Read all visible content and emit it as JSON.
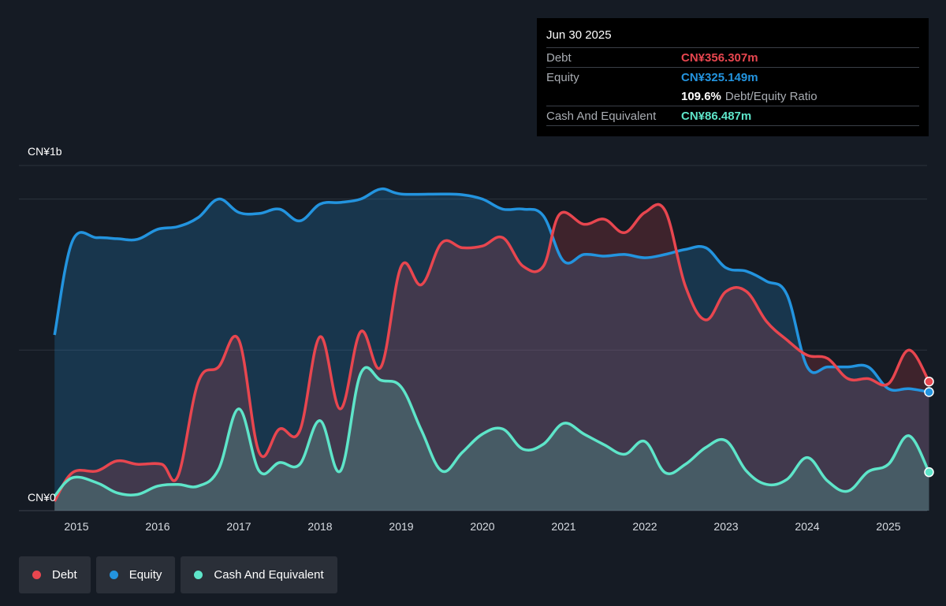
{
  "tooltip": {
    "date": "Jun 30 2025",
    "debt_label": "Debt",
    "debt_value": "CN¥356.307m",
    "equity_label": "Equity",
    "equity_value": "CN¥325.149m",
    "ratio_value": "109.6%",
    "ratio_label": "Debt/Equity Ratio",
    "cash_label": "Cash And Equivalent",
    "cash_value": "CN¥86.487m"
  },
  "legend": {
    "debt": "Debt",
    "equity": "Equity",
    "cash": "Cash And Equivalent"
  },
  "colors": {
    "debt": "#e8464f",
    "equity": "#2394df",
    "cash": "#5ee5c9",
    "background": "#151b24"
  },
  "chart_data": {
    "type": "area",
    "unit": "CN¥m",
    "y_top_label": "CN¥1b",
    "y_zero_label": "CN¥0",
    "ylim": [
      -30,
      1000
    ],
    "xlim": [
      2014.73,
      2025.5
    ],
    "x_ticks": [
      2015,
      2016,
      2017,
      2018,
      2019,
      2020,
      2021,
      2022,
      2023,
      2024,
      2025
    ],
    "grid": true,
    "legend_position": "bottom-left",
    "series": [
      {
        "name": "Debt",
        "key": "debt",
        "points": [
          [
            2014.73,
            0
          ],
          [
            2014.95,
            85
          ],
          [
            2015.25,
            90
          ],
          [
            2015.5,
            120
          ],
          [
            2015.75,
            110
          ],
          [
            2016.05,
            110
          ],
          [
            2016.25,
            75
          ],
          [
            2016.5,
            355
          ],
          [
            2016.75,
            400
          ],
          [
            2017.0,
            480
          ],
          [
            2017.25,
            145
          ],
          [
            2017.5,
            215
          ],
          [
            2017.75,
            210
          ],
          [
            2018.0,
            490
          ],
          [
            2018.25,
            275
          ],
          [
            2018.5,
            505
          ],
          [
            2018.75,
            400
          ],
          [
            2019.0,
            700
          ],
          [
            2019.25,
            645
          ],
          [
            2019.5,
            770
          ],
          [
            2019.75,
            755
          ],
          [
            2020.0,
            760
          ],
          [
            2020.25,
            785
          ],
          [
            2020.5,
            700
          ],
          [
            2020.75,
            700
          ],
          [
            2020.95,
            855
          ],
          [
            2021.25,
            825
          ],
          [
            2021.5,
            840
          ],
          [
            2021.75,
            800
          ],
          [
            2022.0,
            860
          ],
          [
            2022.25,
            865
          ],
          [
            2022.5,
            640
          ],
          [
            2022.75,
            540
          ],
          [
            2023.0,
            625
          ],
          [
            2023.25,
            625
          ],
          [
            2023.5,
            535
          ],
          [
            2023.75,
            480
          ],
          [
            2024.0,
            435
          ],
          [
            2024.25,
            425
          ],
          [
            2024.5,
            365
          ],
          [
            2024.75,
            365
          ],
          [
            2025.0,
            350
          ],
          [
            2025.25,
            450
          ],
          [
            2025.5,
            356.307
          ]
        ]
      },
      {
        "name": "Equity",
        "key": "equity",
        "points": [
          [
            2014.73,
            495
          ],
          [
            2014.95,
            775
          ],
          [
            2015.25,
            785
          ],
          [
            2015.5,
            782
          ],
          [
            2015.75,
            780
          ],
          [
            2016.0,
            810
          ],
          [
            2016.25,
            818
          ],
          [
            2016.5,
            845
          ],
          [
            2016.75,
            900
          ],
          [
            2017.0,
            860
          ],
          [
            2017.25,
            857
          ],
          [
            2017.5,
            870
          ],
          [
            2017.75,
            835
          ],
          [
            2018.0,
            885
          ],
          [
            2018.25,
            890
          ],
          [
            2018.5,
            900
          ],
          [
            2018.75,
            930
          ],
          [
            2019.0,
            915
          ],
          [
            2019.5,
            915
          ],
          [
            2019.75,
            913
          ],
          [
            2020.0,
            900
          ],
          [
            2020.25,
            870
          ],
          [
            2020.5,
            870
          ],
          [
            2020.75,
            850
          ],
          [
            2021.0,
            715
          ],
          [
            2021.25,
            735
          ],
          [
            2021.5,
            730
          ],
          [
            2021.75,
            735
          ],
          [
            2022.0,
            725
          ],
          [
            2022.25,
            735
          ],
          [
            2022.5,
            750
          ],
          [
            2022.75,
            755
          ],
          [
            2023.0,
            695
          ],
          [
            2023.25,
            685
          ],
          [
            2023.5,
            655
          ],
          [
            2023.75,
            615
          ],
          [
            2024.0,
            400
          ],
          [
            2024.25,
            400
          ],
          [
            2024.5,
            400
          ],
          [
            2024.75,
            400
          ],
          [
            2025.0,
            335
          ],
          [
            2025.25,
            335
          ],
          [
            2025.5,
            325.149
          ]
        ]
      },
      {
        "name": "Cash And Equivalent",
        "key": "cash",
        "points": [
          [
            2014.73,
            15
          ],
          [
            2014.95,
            70
          ],
          [
            2015.25,
            55
          ],
          [
            2015.5,
            25
          ],
          [
            2015.75,
            20
          ],
          [
            2016.0,
            45
          ],
          [
            2016.25,
            50
          ],
          [
            2016.5,
            45
          ],
          [
            2016.75,
            95
          ],
          [
            2017.0,
            275
          ],
          [
            2017.25,
            90
          ],
          [
            2017.5,
            115
          ],
          [
            2017.75,
            110
          ],
          [
            2018.0,
            240
          ],
          [
            2018.25,
            90
          ],
          [
            2018.5,
            380
          ],
          [
            2018.75,
            360
          ],
          [
            2019.0,
            340
          ],
          [
            2019.25,
            210
          ],
          [
            2019.5,
            90
          ],
          [
            2019.75,
            145
          ],
          [
            2020.0,
            200
          ],
          [
            2020.25,
            215
          ],
          [
            2020.5,
            155
          ],
          [
            2020.75,
            170
          ],
          [
            2021.0,
            232
          ],
          [
            2021.25,
            200
          ],
          [
            2021.5,
            168
          ],
          [
            2021.75,
            140
          ],
          [
            2022.0,
            178
          ],
          [
            2022.25,
            85
          ],
          [
            2022.5,
            110
          ],
          [
            2022.75,
            160
          ],
          [
            2023.0,
            180
          ],
          [
            2023.25,
            90
          ],
          [
            2023.5,
            50
          ],
          [
            2023.75,
            65
          ],
          [
            2024.0,
            130
          ],
          [
            2024.25,
            60
          ],
          [
            2024.5,
            30
          ],
          [
            2024.75,
            88
          ],
          [
            2025.0,
            110
          ],
          [
            2025.25,
            195
          ],
          [
            2025.5,
            86.487
          ]
        ]
      }
    ]
  }
}
